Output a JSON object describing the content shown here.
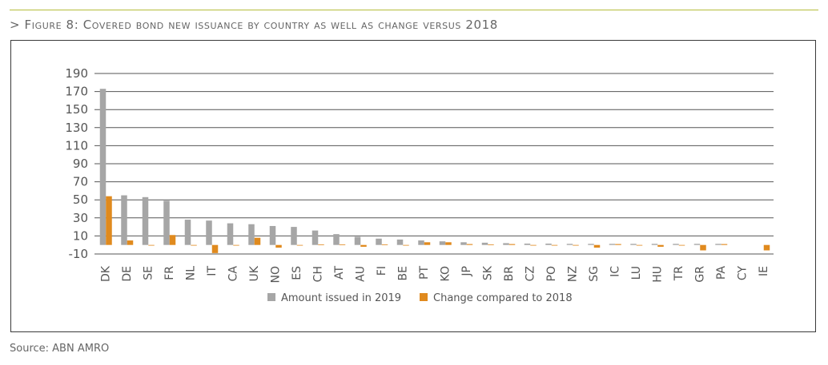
{
  "figure": {
    "title": "> Figure 8: Covered bond new issuance by country as well as change versus 2018",
    "source": "Source: ABN AMRO"
  },
  "chart_data": {
    "type": "bar",
    "categories": [
      "DK",
      "DE",
      "SE",
      "FR",
      "NL",
      "IT",
      "CA",
      "UK",
      "NO",
      "ES",
      "CH",
      "AT",
      "AU",
      "FI",
      "BE",
      "PT",
      "KO",
      "JP",
      "SK",
      "BR",
      "CZ",
      "PO",
      "NZ",
      "SG",
      "IC",
      "LU",
      "HU",
      "TR",
      "GR",
      "PA",
      "CY",
      "IE"
    ],
    "series": [
      {
        "name": "Amount issued in 2019",
        "color": "#a6a6a6",
        "values": [
          173,
          55,
          53,
          49,
          28,
          27,
          24,
          23,
          21,
          20,
          16,
          12,
          9,
          7,
          6,
          5,
          4,
          3,
          2.5,
          2,
          1.5,
          1.5,
          1.2,
          1.2,
          1.2,
          1.2,
          1.2,
          1.2,
          1.2,
          1.2,
          0,
          0
        ]
      },
      {
        "name": "Change compared to 2018",
        "color": "#e08a1e",
        "values": [
          54,
          5,
          -0.5,
          11,
          -0.3,
          -9,
          -0.5,
          8,
          -3,
          -0.3,
          0.5,
          0.5,
          -2,
          0.5,
          -0.5,
          3,
          3,
          1,
          0.5,
          1,
          -0.5,
          -0.5,
          -0.3,
          -3,
          1,
          -0.5,
          -2,
          -0.5,
          -6,
          1,
          0,
          -6
        ]
      }
    ],
    "yticks": [
      190,
      170,
      150,
      130,
      110,
      90,
      70,
      50,
      30,
      10,
      -10
    ],
    "ylim": [
      -10,
      190
    ],
    "grid": true,
    "legend": "bottom"
  }
}
